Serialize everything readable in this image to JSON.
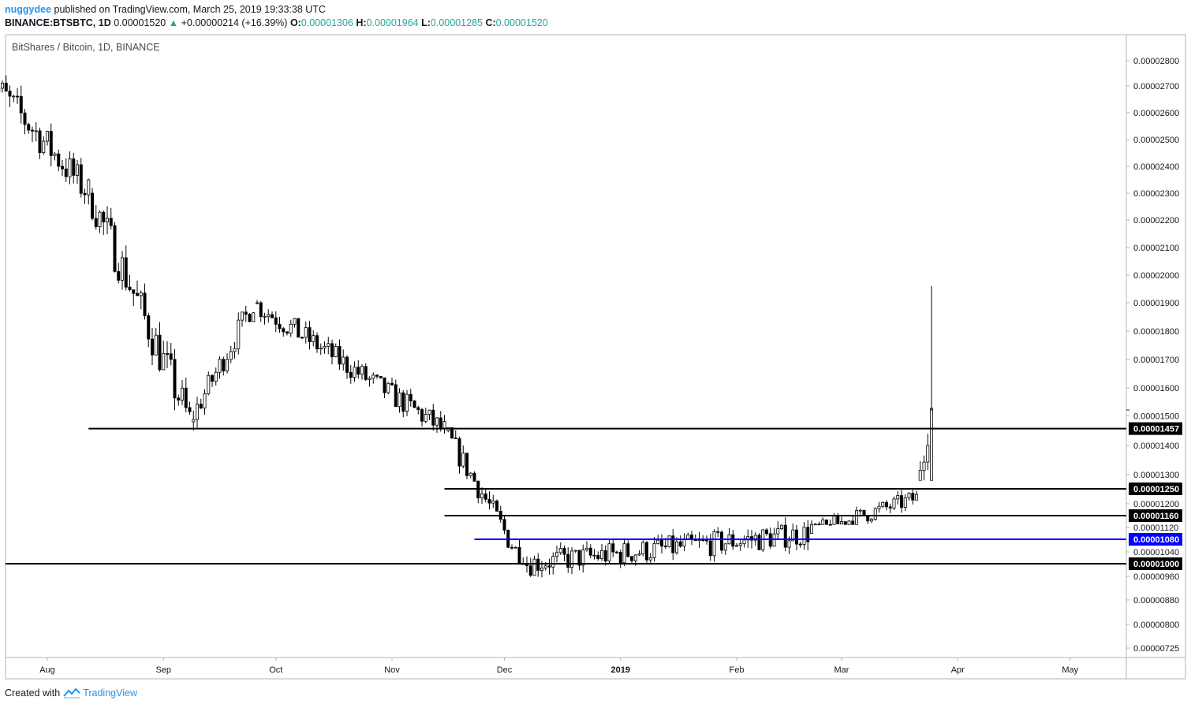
{
  "header": {
    "author": "nuggydee",
    "published_text": "published on TradingView.com, March 25, 2019 19:33:38 UTC",
    "symbol": "BINANCE:BTSBTC, 1D",
    "last": "0.00001520",
    "change": "+0.00000214 (+16.39%)",
    "o_label": "O:",
    "o_value": "0.00001306",
    "h_label": "H:",
    "h_value": "0.00001964",
    "l_label": "L:",
    "l_value": "0.00001285",
    "c_label": "C:",
    "c_value": "0.00001520"
  },
  "footer": {
    "created_with": "Created with",
    "brand": "TradingView"
  },
  "chart_data": {
    "type": "candlestick",
    "title": "BitShares / Bitcoin, 1D, BINANCE",
    "y_ticks": [
      "0.00002800",
      "0.00002700",
      "0.00002600",
      "0.00002500",
      "0.00002400",
      "0.00002300",
      "0.00002200",
      "0.00002100",
      "0.00002000",
      "0.00001900",
      "0.00001800",
      "0.00001700",
      "0.00001600",
      "0.00001500",
      "0.00001400",
      "0.00001300",
      "0.00001200",
      "0.00001120",
      "0.00001040",
      "0.00000960",
      "0.00000880",
      "0.00000800",
      "0.00000725"
    ],
    "x_ticks": [
      "Aug",
      "Sep",
      "Oct",
      "Nov",
      "Dec",
      "2019",
      "Feb",
      "Mar",
      "Apr",
      "May"
    ],
    "x_ticks_bold": [
      "2019"
    ],
    "current_price_label": "0.00001520",
    "hlines": [
      {
        "value": "0.00001457",
        "color": "#000000",
        "from": "2018-08-12"
      },
      {
        "value": "0.00001250",
        "color": "#000000",
        "from": "2018-11-15"
      },
      {
        "value": "0.00001160",
        "color": "#000000",
        "from": "2018-11-15"
      },
      {
        "value": "0.00001080",
        "color": "#0000ff",
        "from": "2018-11-23"
      },
      {
        "value": "0.00001000",
        "color": "#000000",
        "from": "2018-07-16"
      }
    ],
    "series": [
      {
        "period": "2018-07-16 .. 2018-08-12",
        "open": 2.75e-05,
        "close": 2.3e-05,
        "high": 2.78e-05,
        "low": 2.05e-05
      },
      {
        "period": "2018-08-13 .. 2018-09-08",
        "open": 2.3e-05,
        "close": 1.48e-05,
        "high": 2.32e-05,
        "low": 1.48e-05
      },
      {
        "period": "2018-09-09 .. 2018-09-25",
        "open": 1.48e-05,
        "close": 1.9e-05,
        "high": 1.93e-05,
        "low": 1.43e-05
      },
      {
        "period": "2018-09-26 .. 2018-11-15",
        "open": 1.9e-05,
        "close": 1.45e-05,
        "high": 1.91e-05,
        "low": 1.44e-05
      },
      {
        "period": "2018-11-16 .. 2018-12-06",
        "open": 1.45e-05,
        "close": 1e-05,
        "high": 1.46e-05,
        "low": 1e-05
      },
      {
        "period": "2018-12-07 .. 2019-02-20",
        "open": 1e-05,
        "close": 1.1e-05,
        "high": 1.25e-05,
        "low": 8e-06
      },
      {
        "period": "2019-02-21 .. 2019-03-21",
        "open": 1.1e-05,
        "close": 1.22e-05,
        "high": 1.46e-05,
        "low": 1.13e-05
      },
      {
        "period": "2019-03-22 .. 2019-03-25",
        "open": 1.28e-05,
        "close": 1.52e-05,
        "high": 1.96e-05,
        "low": 1.28e-05
      }
    ]
  }
}
